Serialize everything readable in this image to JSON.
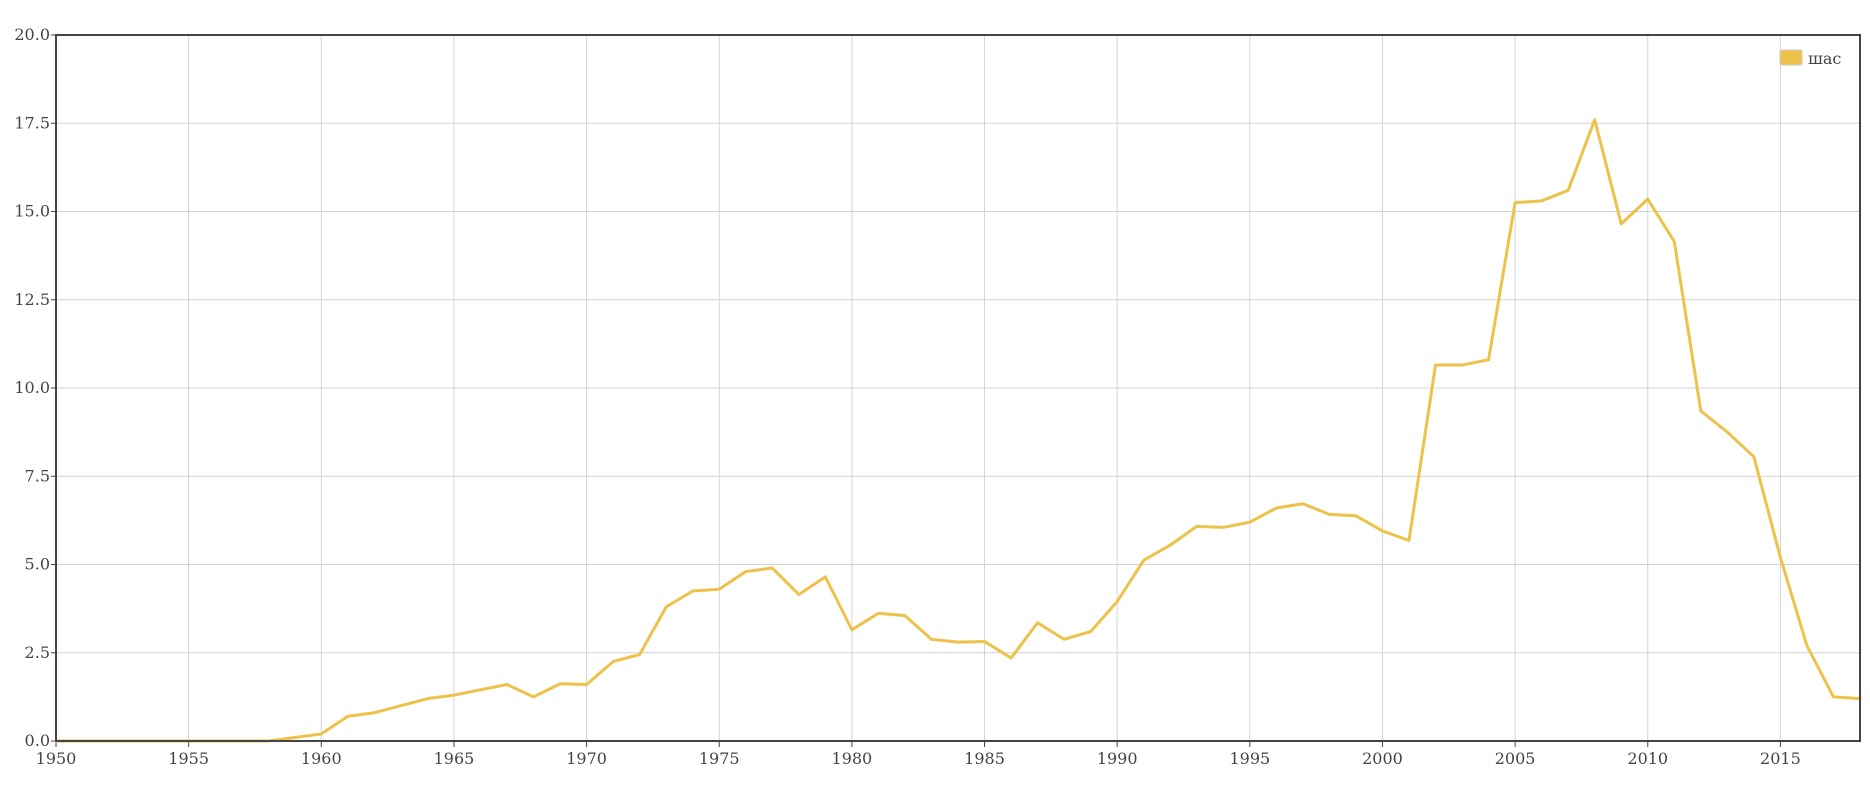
{
  "chart_data": {
    "type": "line",
    "title": "",
    "xlabel": "",
    "ylabel": "",
    "xlim": [
      1950,
      2018
    ],
    "ylim": [
      0,
      20
    ],
    "x_ticks": [
      "1950",
      "1955",
      "1960",
      "1965",
      "1970",
      "1975",
      "1980",
      "1985",
      "1990",
      "1995",
      "2000",
      "2005",
      "2010",
      "2015"
    ],
    "y_ticks": [
      "0.0",
      "2.5",
      "5.0",
      "7.5",
      "10.0",
      "12.5",
      "15.0",
      "17.5",
      "20.0"
    ],
    "grid": true,
    "legend_position": "top-right",
    "series": [
      {
        "name": "шас",
        "color": "#eec24a",
        "x": [
          1950,
          1951,
          1952,
          1953,
          1954,
          1955,
          1956,
          1957,
          1958,
          1959,
          1960,
          1961,
          1962,
          1963,
          1964,
          1965,
          1966,
          1967,
          1968,
          1969,
          1970,
          1971,
          1972,
          1973,
          1974,
          1975,
          1976,
          1977,
          1978,
          1979,
          1980,
          1981,
          1982,
          1983,
          1984,
          1985,
          1986,
          1987,
          1988,
          1989,
          1990,
          1991,
          1992,
          1993,
          1994,
          1995,
          1996,
          1997,
          1998,
          1999,
          2000,
          2001,
          2002,
          2003,
          2004,
          2005,
          2006,
          2007,
          2008,
          2009,
          2010,
          2011,
          2012,
          2013,
          2014,
          2015,
          2016,
          2017,
          2018
        ],
        "y": [
          0,
          0,
          0,
          0,
          0,
          0,
          0,
          0,
          0,
          0.1,
          0.2,
          0.7,
          0.8,
          1.0,
          1.2,
          1.3,
          1.45,
          1.6,
          1.25,
          1.62,
          1.6,
          2.25,
          2.45,
          3.8,
          4.25,
          4.3,
          4.8,
          4.9,
          4.15,
          4.65,
          3.15,
          3.62,
          3.55,
          2.88,
          2.8,
          2.82,
          2.35,
          3.35,
          2.88,
          3.1,
          3.95,
          5.12,
          5.55,
          6.08,
          6.05,
          6.2,
          6.6,
          6.72,
          6.42,
          6.38,
          5.95,
          5.68,
          10.65,
          10.65,
          10.8,
          15.25,
          15.3,
          15.6,
          17.6,
          14.65,
          15.35,
          14.15,
          9.35,
          8.75,
          8.05,
          5.2,
          2.7,
          1.25,
          1.2
        ]
      }
    ]
  }
}
